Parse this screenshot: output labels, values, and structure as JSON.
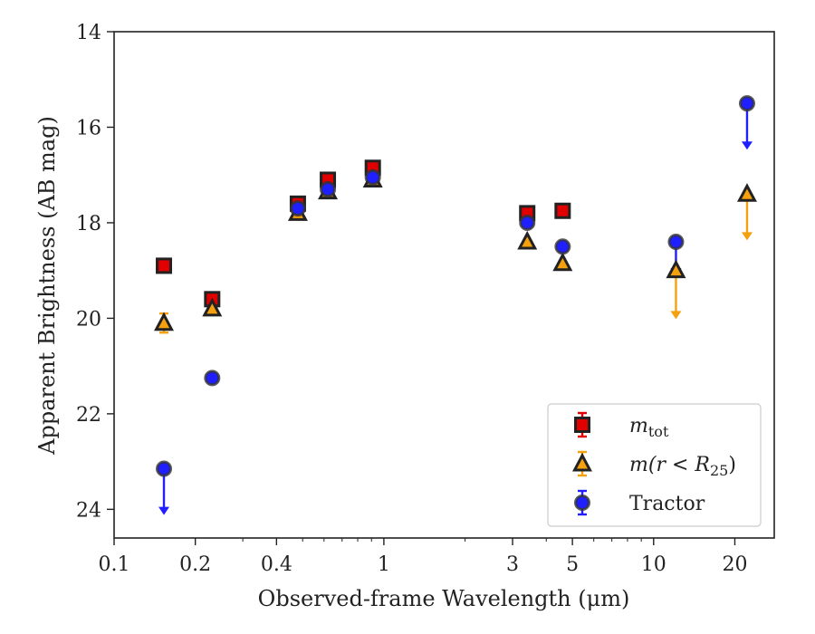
{
  "chart_data": {
    "type": "scatter",
    "xlabel": "Observed-frame Wavelength (μm)",
    "ylabel": "Apparent Brightness (AB mag)",
    "xscale": "log",
    "xlim": [
      0.1,
      28
    ],
    "ylim": [
      24.6,
      14
    ],
    "y_inverted": true,
    "xticks": [
      {
        "value": 0.1,
        "label": "0.1"
      },
      {
        "value": 0.2,
        "label": "0.2"
      },
      {
        "value": 0.4,
        "label": "0.4"
      },
      {
        "value": 1,
        "label": "1"
      },
      {
        "value": 3,
        "label": "3"
      },
      {
        "value": 5,
        "label": "5"
      },
      {
        "value": 10,
        "label": "10"
      },
      {
        "value": 20,
        "label": "20"
      }
    ],
    "yticks": [
      {
        "value": 14,
        "label": "14"
      },
      {
        "value": 16,
        "label": "16"
      },
      {
        "value": 18,
        "label": "18"
      },
      {
        "value": 20,
        "label": "20"
      },
      {
        "value": 22,
        "label": "22"
      },
      {
        "value": 24,
        "label": "24"
      }
    ],
    "legend_position": "bottom-right",
    "series": [
      {
        "name_main": "m",
        "name_sub": "tot",
        "marker": "square",
        "color": "#e00000",
        "errcolor": "#e00000",
        "points": [
          {
            "x": 0.153,
            "y": 18.9
          },
          {
            "x": 0.231,
            "y": 19.6
          },
          {
            "x": 0.48,
            "y": 17.6
          },
          {
            "x": 0.62,
            "y": 17.1
          },
          {
            "x": 0.91,
            "y": 16.85
          },
          {
            "x": 3.4,
            "y": 17.8
          },
          {
            "x": 4.6,
            "y": 17.75
          }
        ]
      },
      {
        "name_main": "m(r < R",
        "name_sub": "25",
        "name_tail": ")",
        "marker": "triangle",
        "color": "#f5a00f",
        "errcolor": "#f5a00f",
        "points": [
          {
            "x": 0.153,
            "y": 20.1,
            "err": 0.2
          },
          {
            "x": 0.231,
            "y": 19.8
          },
          {
            "x": 0.48,
            "y": 17.8
          },
          {
            "x": 0.62,
            "y": 17.35
          },
          {
            "x": 0.91,
            "y": 17.1
          },
          {
            "x": 3.4,
            "y": 18.4
          },
          {
            "x": 4.6,
            "y": 18.85
          },
          {
            "x": 12.1,
            "y": 19.0,
            "upper_limit": 20.0
          },
          {
            "x": 22.2,
            "y": 17.4,
            "upper_limit": 18.35
          }
        ]
      },
      {
        "name": "Tractor",
        "marker": "circle",
        "color": "#1f1fff",
        "errcolor": "#1f1fff",
        "points": [
          {
            "x": 0.153,
            "y": 23.15,
            "upper_limit": 24.1
          },
          {
            "x": 0.231,
            "y": 21.25
          },
          {
            "x": 0.48,
            "y": 17.7
          },
          {
            "x": 0.62,
            "y": 17.3
          },
          {
            "x": 0.91,
            "y": 17.05
          },
          {
            "x": 3.4,
            "y": 18.0
          },
          {
            "x": 4.6,
            "y": 18.5
          },
          {
            "x": 12.1,
            "y": 18.4,
            "upper_limit": 19.1
          },
          {
            "x": 22.2,
            "y": 15.5,
            "upper_limit": 16.45
          }
        ]
      }
    ]
  }
}
